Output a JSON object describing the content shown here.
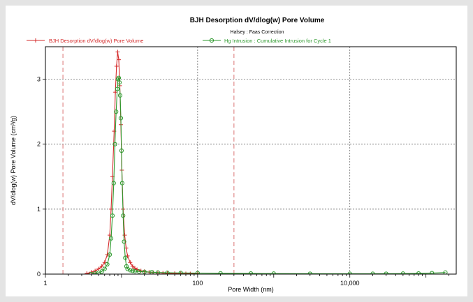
{
  "colors": {
    "bjh": "#d42a2a",
    "hg": "#2e9a2e",
    "marker_line": "#e08a8a",
    "grid": "#555555",
    "background": "#e4e4e4"
  },
  "chart_data": {
    "type": "line",
    "title": "BJH Desorption dV/dlog(w) Pore Volume",
    "subtitle": "Halsey : Faas Correction",
    "xlabel": "Pore Width (nm)",
    "ylabel": "dV/dlog(w) Pore Volume (cm³/g)",
    "x_scale": "log",
    "xlim": [
      1,
      250000
    ],
    "ylim": [
      0,
      3.5
    ],
    "x_ticks": [
      1,
      100,
      10000
    ],
    "x_tick_labels": [
      "1",
      "100",
      "10,000"
    ],
    "y_ticks": [
      0,
      1,
      2,
      3
    ],
    "y_tick_labels": [
      "0",
      "1",
      "2",
      "3"
    ],
    "grid": true,
    "legend_position": "top",
    "reference_lines_x": [
      1.7,
      300
    ],
    "series": [
      {
        "name": "BJH Desorption dV/dlog(w) Pore Volume",
        "color": "#d42a2a",
        "marker": "plus",
        "x": [
          3.5,
          4,
          4.5,
          5,
          5.5,
          6,
          6.5,
          7,
          7.3,
          7.6,
          8,
          8.3,
          8.6,
          8.9,
          9.2,
          9.5,
          9.8,
          10.1,
          10.5,
          11,
          11.5,
          12,
          13,
          14,
          15,
          16,
          18,
          20,
          23,
          26,
          30,
          35,
          40,
          50,
          60,
          70,
          80,
          100
        ],
        "y": [
          0.01,
          0.03,
          0.05,
          0.08,
          0.12,
          0.18,
          0.3,
          0.6,
          1.0,
          1.5,
          2.2,
          2.8,
          3.2,
          3.42,
          3.3,
          2.9,
          2.3,
          1.6,
          1.0,
          0.6,
          0.4,
          0.28,
          0.18,
          0.12,
          0.09,
          0.07,
          0.05,
          0.04,
          0.03,
          0.025,
          0.02,
          0.015,
          0.012,
          0.01,
          0.008,
          0.006,
          0.005,
          0.004
        ]
      },
      {
        "name": "Hg Intrusion : Cumulative Intrusion for Cycle 1",
        "color": "#2e9a2e",
        "marker": "circle",
        "x": [
          4,
          4.5,
          5,
          5.5,
          6,
          6.5,
          7,
          7.3,
          7.6,
          7.9,
          8.2,
          8.5,
          8.8,
          9.0,
          9.2,
          9.4,
          9.6,
          9.8,
          10.0,
          10.2,
          10.5,
          10.8,
          11.2,
          11.6,
          12,
          13,
          14,
          15,
          17,
          20,
          25,
          30,
          40,
          60,
          100,
          200,
          500,
          1000,
          3000,
          10000,
          20000,
          30000,
          50000,
          80000,
          120000,
          180000
        ],
        "y": [
          0.0,
          0.01,
          0.02,
          0.04,
          0.08,
          0.15,
          0.3,
          0.55,
          0.9,
          1.4,
          2.0,
          2.5,
          2.85,
          3.0,
          3.02,
          2.95,
          2.75,
          2.4,
          1.9,
          1.4,
          0.9,
          0.5,
          0.25,
          0.12,
          0.08,
          0.06,
          0.05,
          0.045,
          0.04,
          0.035,
          0.03,
          0.025,
          0.02,
          0.018,
          0.015,
          0.012,
          0.01,
          0.008,
          0.006,
          0.005,
          0.005,
          0.006,
          0.008,
          0.01,
          0.015,
          0.025
        ]
      }
    ]
  }
}
